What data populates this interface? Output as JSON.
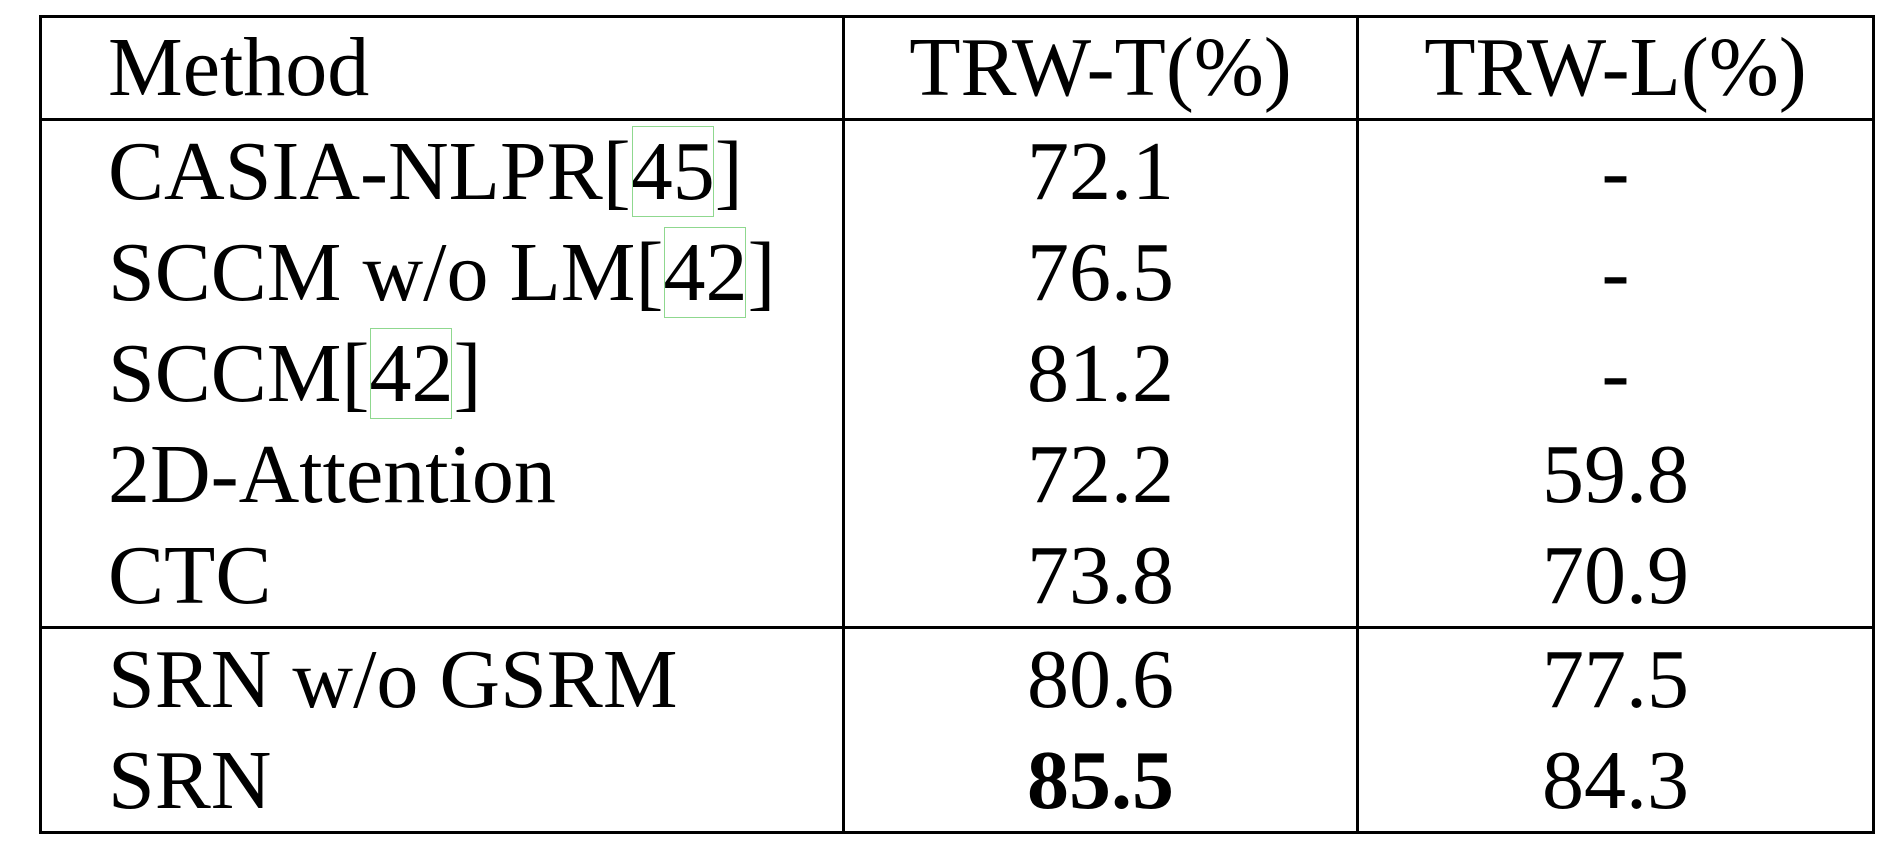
{
  "table": {
    "header": [
      "Method",
      "TRW-T(%)",
      "TRW-L(%)"
    ],
    "groups": [
      [
        [
          "CASIA-NLPR[45]",
          "72.1",
          "-"
        ],
        [
          "SCCM w/o LM[42]",
          "76.5",
          "-"
        ],
        [
          "SCCM[42]",
          "81.2",
          "-"
        ],
        [
          "2D-Attention",
          "72.2",
          "59.8"
        ],
        [
          "CTC",
          "73.8",
          "70.9"
        ]
      ],
      [
        [
          "SRN w/o GSRM",
          "80.6",
          "77.5"
        ],
        [
          "SRN",
          "85.5",
          "84.3"
        ]
      ]
    ],
    "bold": [
      [
        1,
        1,
        1
      ]
    ]
  }
}
